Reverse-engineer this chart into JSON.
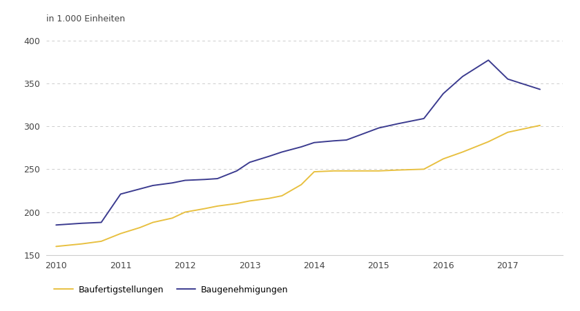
{
  "baufertigstellungen_x": [
    2010.0,
    2010.4,
    2010.7,
    2011.0,
    2011.3,
    2011.5,
    2011.8,
    2012.0,
    2012.3,
    2012.5,
    2012.8,
    2013.0,
    2013.3,
    2013.5,
    2013.8,
    2014.0,
    2014.3,
    2014.5,
    2015.0,
    2015.3,
    2015.7,
    2016.0,
    2016.3,
    2016.7,
    2017.0,
    2017.5
  ],
  "baufertigstellungen_y": [
    160,
    163,
    166,
    175,
    182,
    188,
    193,
    200,
    204,
    207,
    210,
    213,
    216,
    219,
    232,
    247,
    248,
    248,
    248,
    249,
    250,
    262,
    270,
    282,
    293,
    301
  ],
  "baugenehmigungen_x": [
    2010.0,
    2010.4,
    2010.7,
    2011.0,
    2011.3,
    2011.5,
    2011.8,
    2012.0,
    2012.3,
    2012.5,
    2012.8,
    2013.0,
    2013.3,
    2013.5,
    2013.8,
    2014.0,
    2014.3,
    2014.5,
    2015.0,
    2015.3,
    2015.7,
    2016.0,
    2016.3,
    2016.7,
    2017.0,
    2017.5
  ],
  "baugenehmigungen_y": [
    185,
    187,
    188,
    221,
    227,
    231,
    234,
    237,
    238,
    239,
    248,
    258,
    265,
    270,
    276,
    281,
    283,
    284,
    298,
    303,
    309,
    338,
    358,
    377,
    355,
    343
  ],
  "color_baufertigstellungen": "#e8c040",
  "color_baugenehmigungen": "#3b3b8f",
  "ylabel_line1": "in 1.000 Einheiten",
  "ylim": [
    150,
    400
  ],
  "yticks": [
    150,
    200,
    250,
    300,
    350,
    400
  ],
  "xlim": [
    2009.85,
    2017.85
  ],
  "xticks": [
    2010,
    2011,
    2012,
    2013,
    2014,
    2015,
    2016,
    2017
  ],
  "xtick_labels": [
    "2010",
    "2011",
    "2012",
    "2013",
    "2014",
    "2015",
    "2016",
    "2017"
  ],
  "legend_baufertigstellungen": "Baufertigstellungen",
  "legend_baugenehmigungen": "Baugenehmigungen",
  "background_color": "#ffffff",
  "grid_color": "#cccccc",
  "linewidth": 1.4
}
